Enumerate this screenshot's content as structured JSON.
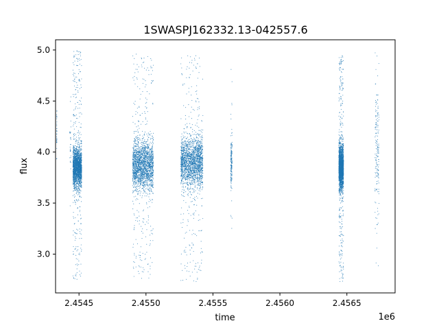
{
  "chart_data": {
    "type": "scatter",
    "title": "1SWASPJ162332.13-042557.6",
    "xlabel": "time",
    "ylabel": "flux",
    "x_offset_label": "1e6",
    "xlim": [
      2454325,
      2456860
    ],
    "ylim": [
      2.62,
      5.1
    ],
    "xticks": [
      {
        "value": 2454500,
        "label": "2.4545"
      },
      {
        "value": 2455000,
        "label": "2.4550"
      },
      {
        "value": 2455500,
        "label": "2.4555"
      },
      {
        "value": 2456000,
        "label": "2.4560"
      },
      {
        "value": 2456500,
        "label": "2.4565"
      }
    ],
    "yticks": [
      {
        "value": 3.0,
        "label": "3.0"
      },
      {
        "value": 3.5,
        "label": "3.5"
      },
      {
        "value": 4.0,
        "label": "4.0"
      },
      {
        "value": 4.5,
        "label": "4.5"
      },
      {
        "value": 5.0,
        "label": "5.0"
      }
    ],
    "grid": false,
    "marker_color": "#1f77b4",
    "series": [
      {
        "segments": [
          {
            "x_start": 2454333,
            "x_end": 2454335,
            "y_center": 4.2,
            "y_core": 0.25,
            "y_min": 3.85,
            "y_max": 4.52,
            "density": "sparse"
          },
          {
            "x_start": 2454430,
            "x_end": 2454440,
            "y_center": 4.05,
            "y_core": 0.3,
            "y_min": 3.4,
            "y_max": 4.65,
            "density": "sparse"
          },
          {
            "x_start": 2454455,
            "x_end": 2454520,
            "y_center": 3.85,
            "y_core": 0.18,
            "y_min": 2.75,
            "y_max": 5.0,
            "density": "dense"
          },
          {
            "x_start": 2454900,
            "x_end": 2455055,
            "y_center": 3.87,
            "y_core": 0.22,
            "y_min": 2.76,
            "y_max": 4.97,
            "density": "dense"
          },
          {
            "x_start": 2455260,
            "x_end": 2455425,
            "y_center": 3.9,
            "y_core": 0.22,
            "y_min": 2.72,
            "y_max": 4.95,
            "density": "dense"
          },
          {
            "x_start": 2455633,
            "x_end": 2455643,
            "y_center": 3.9,
            "y_core": 0.2,
            "y_min": 3.2,
            "y_max": 4.88,
            "density": "medium"
          },
          {
            "x_start": 2456440,
            "x_end": 2456475,
            "y_center": 3.85,
            "y_core": 0.2,
            "y_min": 2.73,
            "y_max": 4.95,
            "density": "dense"
          },
          {
            "x_start": 2456710,
            "x_end": 2456740,
            "y_center": 4.0,
            "y_core": 0.6,
            "y_min": 2.88,
            "y_max": 5.02,
            "density": "medium"
          }
        ]
      }
    ]
  }
}
